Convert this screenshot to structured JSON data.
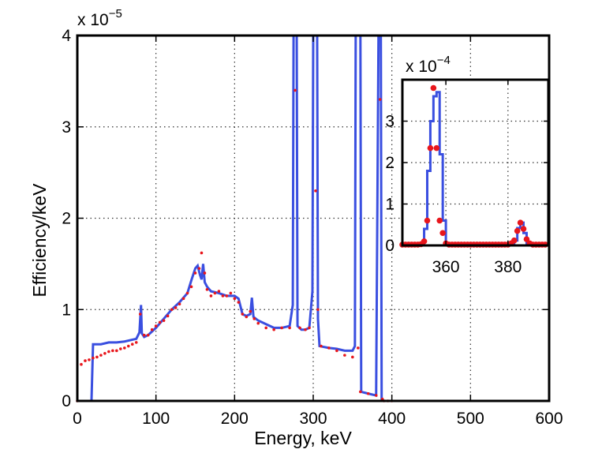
{
  "chart_data": [
    {
      "type": "line",
      "xlabel": "Energy, keV",
      "ylabel": "Efficiency/keV",
      "xlim": [
        0,
        600
      ],
      "ylim": [
        0,
        4
      ],
      "y_multiplier_label": {
        "base": "x 10",
        "exponent": "−5"
      },
      "xticks": [
        0,
        100,
        200,
        300,
        400,
        500,
        600
      ],
      "xtick_labels": [
        "0",
        "100",
        "200",
        "300",
        "400",
        "500",
        "600"
      ],
      "yticks": [
        0,
        1,
        2,
        3,
        4
      ],
      "ytick_labels": [
        "0",
        "1",
        "2",
        "3",
        "4"
      ],
      "grid": true,
      "series": [
        {
          "style": "blue-stairs-line",
          "color": "#3a4fe0",
          "points": [
            [
              0,
              0
            ],
            [
              18,
              0
            ],
            [
              20,
              0.62
            ],
            [
              30,
              0.62
            ],
            [
              40,
              0.64
            ],
            [
              50,
              0.64
            ],
            [
              60,
              0.65
            ],
            [
              70,
              0.67
            ],
            [
              75,
              0.68
            ],
            [
              79,
              0.75
            ],
            [
              81,
              1.05
            ],
            [
              82,
              0.74
            ],
            [
              85,
              0.7
            ],
            [
              90,
              0.72
            ],
            [
              100,
              0.8
            ],
            [
              110,
              0.9
            ],
            [
              120,
              1.0
            ],
            [
              130,
              1.08
            ],
            [
              140,
              1.18
            ],
            [
              145,
              1.32
            ],
            [
              150,
              1.45
            ],
            [
              153,
              1.48
            ],
            [
              156,
              1.38
            ],
            [
              158,
              1.33
            ],
            [
              160,
              1.5
            ],
            [
              162,
              1.3
            ],
            [
              165,
              1.25
            ],
            [
              170,
              1.2
            ],
            [
              180,
              1.18
            ],
            [
              190,
              1.15
            ],
            [
              200,
              1.15
            ],
            [
              205,
              1.12
            ],
            [
              210,
              0.95
            ],
            [
              215,
              0.93
            ],
            [
              220,
              0.95
            ],
            [
              222,
              1.13
            ],
            [
              224,
              0.92
            ],
            [
              230,
              0.88
            ],
            [
              240,
              0.84
            ],
            [
              250,
              0.8
            ],
            [
              260,
              0.8
            ],
            [
              270,
              0.82
            ],
            [
              274,
              1.05
            ],
            [
              275,
              4
            ],
            [
              279,
              4
            ],
            [
              280,
              0.82
            ],
            [
              285,
              0.78
            ],
            [
              290,
              0.78
            ],
            [
              295,
              0.8
            ],
            [
              299,
              1.2
            ],
            [
              300,
              4
            ],
            [
              305,
              4
            ],
            [
              306,
              0.9
            ],
            [
              308,
              0.6
            ],
            [
              320,
              0.58
            ],
            [
              330,
              0.57
            ],
            [
              340,
              0.55
            ],
            [
              350,
              0.55
            ],
            [
              353,
              0.6
            ],
            [
              354,
              4
            ],
            [
              360,
              4
            ],
            [
              361,
              0.1
            ],
            [
              370,
              0.08
            ],
            [
              380,
              0.06
            ],
            [
              383,
              4
            ],
            [
              386,
              4
            ],
            [
              387,
              0.02
            ],
            [
              390,
              0
            ],
            [
              600,
              0
            ]
          ]
        },
        {
          "style": "red-dots",
          "color": "#e8161c",
          "points": [
            [
              0,
              0
            ],
            [
              5,
              0.4
            ],
            [
              10,
              0.44
            ],
            [
              15,
              0.45
            ],
            [
              20,
              0.47
            ],
            [
              25,
              0.48
            ],
            [
              30,
              0.5
            ],
            [
              35,
              0.52
            ],
            [
              40,
              0.54
            ],
            [
              45,
              0.55
            ],
            [
              50,
              0.55
            ],
            [
              55,
              0.57
            ],
            [
              60,
              0.58
            ],
            [
              65,
              0.6
            ],
            [
              70,
              0.62
            ],
            [
              75,
              0.64
            ],
            [
              80,
              0.95
            ],
            [
              85,
              0.72
            ],
            [
              90,
              0.72
            ],
            [
              95,
              0.78
            ],
            [
              100,
              0.82
            ],
            [
              105,
              0.86
            ],
            [
              110,
              0.88
            ],
            [
              115,
              0.93
            ],
            [
              120,
              1.0
            ],
            [
              125,
              1.02
            ],
            [
              130,
              1.06
            ],
            [
              135,
              1.12
            ],
            [
              140,
              1.18
            ],
            [
              145,
              1.25
            ],
            [
              150,
              1.4
            ],
            [
              155,
              1.45
            ],
            [
              158,
              1.62
            ],
            [
              162,
              1.4
            ],
            [
              165,
              1.22
            ],
            [
              170,
              1.15
            ],
            [
              175,
              1.18
            ],
            [
              180,
              1.2
            ],
            [
              185,
              1.15
            ],
            [
              190,
              1.15
            ],
            [
              195,
              1.18
            ],
            [
              200,
              1.12
            ],
            [
              205,
              1.08
            ],
            [
              210,
              0.95
            ],
            [
              215,
              0.92
            ],
            [
              220,
              0.98
            ],
            [
              225,
              0.9
            ],
            [
              230,
              0.85
            ],
            [
              240,
              0.8
            ],
            [
              250,
              0.78
            ],
            [
              260,
              0.8
            ],
            [
              270,
              0.8
            ],
            [
              277,
              3.4
            ],
            [
              283,
              0.8
            ],
            [
              290,
              0.78
            ],
            [
              295,
              0.8
            ],
            [
              303,
              2.3
            ],
            [
              306,
              1.0
            ],
            [
              310,
              0.6
            ],
            [
              320,
              0.58
            ],
            [
              330,
              0.55
            ],
            [
              340,
              0.5
            ],
            [
              350,
              0.48
            ],
            [
              357,
              0.58
            ],
            [
              360,
              0.1
            ],
            [
              370,
              0.08
            ],
            [
              380,
              0.06
            ],
            [
              385,
              3.3
            ],
            [
              388,
              0.02
            ],
            [
              390,
              0
            ],
            [
              395,
              0
            ],
            [
              400,
              0
            ]
          ]
        }
      ]
    },
    {
      "type": "line",
      "role": "inset",
      "xlim": [
        346,
        393
      ],
      "ylim": [
        0,
        4
      ],
      "y_multiplier_label": {
        "base": "x 10",
        "exponent": "−4"
      },
      "xticks": [
        360,
        380
      ],
      "xtick_labels": [
        "360",
        "380"
      ],
      "yticks": [
        0,
        1,
        2,
        3
      ],
      "ytick_labels": [
        "0",
        "1",
        "2",
        "3"
      ],
      "grid": true,
      "series": [
        {
          "style": "blue-stairs-line",
          "color": "#3a4fe0",
          "points": [
            [
              346,
              0.02
            ],
            [
              353,
              0.02
            ],
            [
              353,
              0.4
            ],
            [
              354,
              0.4
            ],
            [
              354,
              1.8
            ],
            [
              355,
              1.8
            ],
            [
              355,
              3.0
            ],
            [
              356,
              3.0
            ],
            [
              356,
              3.6
            ],
            [
              357,
              3.6
            ],
            [
              357,
              3.7
            ],
            [
              358,
              3.7
            ],
            [
              358,
              2.2
            ],
            [
              359,
              2.2
            ],
            [
              359,
              0.6
            ],
            [
              360,
              0.6
            ],
            [
              360,
              0.02
            ],
            [
              382,
              0.02
            ],
            [
              382,
              0.12
            ],
            [
              383,
              0.12
            ],
            [
              383,
              0.42
            ],
            [
              384,
              0.42
            ],
            [
              384,
              0.55
            ],
            [
              385,
              0.55
            ],
            [
              385,
              0.3
            ],
            [
              386,
              0.3
            ],
            [
              386,
              0.05
            ],
            [
              387,
              0.05
            ],
            [
              387,
              0.01
            ],
            [
              393,
              0.01
            ]
          ]
        },
        {
          "style": "red-dots",
          "color": "#e8161c",
          "points": [
            [
              346,
              0.02
            ],
            [
              347,
              0.02
            ],
            [
              348,
              0.02
            ],
            [
              349,
              0.02
            ],
            [
              350,
              0.02
            ],
            [
              351,
              0.02
            ],
            [
              352,
              0.03
            ],
            [
              353,
              0.1
            ],
            [
              354,
              0.6
            ],
            [
              355,
              2.35
            ],
            [
              356,
              3.8
            ],
            [
              357,
              2.35
            ],
            [
              358,
              0.6
            ],
            [
              359,
              0.3
            ],
            [
              360,
              0.05
            ],
            [
              361,
              0.02
            ],
            [
              362,
              0.02
            ],
            [
              363,
              0.02
            ],
            [
              364,
              0.02
            ],
            [
              365,
              0.02
            ],
            [
              366,
              0.02
            ],
            [
              367,
              0.02
            ],
            [
              368,
              0.02
            ],
            [
              369,
              0.02
            ],
            [
              370,
              0.02
            ],
            [
              371,
              0.02
            ],
            [
              372,
              0.02
            ],
            [
              373,
              0.02
            ],
            [
              374,
              0.02
            ],
            [
              375,
              0.02
            ],
            [
              376,
              0.02
            ],
            [
              377,
              0.02
            ],
            [
              378,
              0.02
            ],
            [
              379,
              0.02
            ],
            [
              380,
              0.02
            ],
            [
              381,
              0.05
            ],
            [
              382,
              0.12
            ],
            [
              383,
              0.35
            ],
            [
              384,
              0.55
            ],
            [
              385,
              0.4
            ],
            [
              386,
              0.15
            ],
            [
              387,
              0.05
            ],
            [
              388,
              0.02
            ],
            [
              389,
              0.02
            ],
            [
              390,
              0.02
            ],
            [
              391,
              0.02
            ],
            [
              392,
              0.02
            ]
          ]
        }
      ]
    }
  ]
}
